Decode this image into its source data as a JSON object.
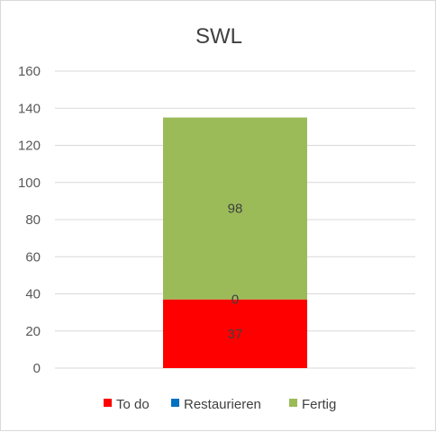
{
  "chart_data": {
    "type": "stacked-bar",
    "title": "SWL",
    "categories": [
      ""
    ],
    "series": [
      {
        "name": "To do",
        "color": "#ff0000",
        "values": [
          37
        ]
      },
      {
        "name": "Restaurieren",
        "color": "#0070c0",
        "values": [
          0
        ]
      },
      {
        "name": "Fertig",
        "color": "#9bbb59",
        "values": [
          98
        ]
      }
    ],
    "ylim": [
      0,
      160
    ],
    "yticks": [
      0,
      20,
      40,
      60,
      80,
      100,
      120,
      140,
      160
    ],
    "grid": true,
    "legend": "bottom"
  }
}
